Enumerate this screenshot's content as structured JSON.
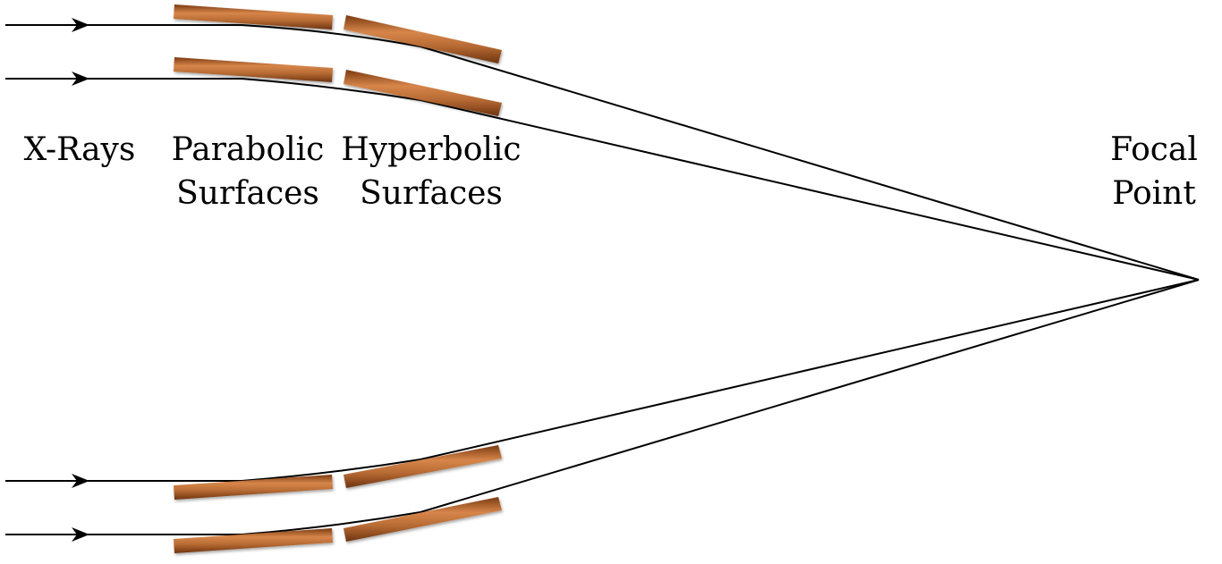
{
  "labels": {
    "xrays": "X-Rays",
    "parabolic_line1": "Parabolic",
    "parabolic_line2": "Surfaces",
    "hyperbolic_line1": "Hyperbolic",
    "hyperbolic_line2": "Surfaces",
    "focal_line1": "Focal",
    "focal_line2": "Point"
  },
  "colors": {
    "mirror": "#b0602a",
    "ray": "#000000"
  }
}
